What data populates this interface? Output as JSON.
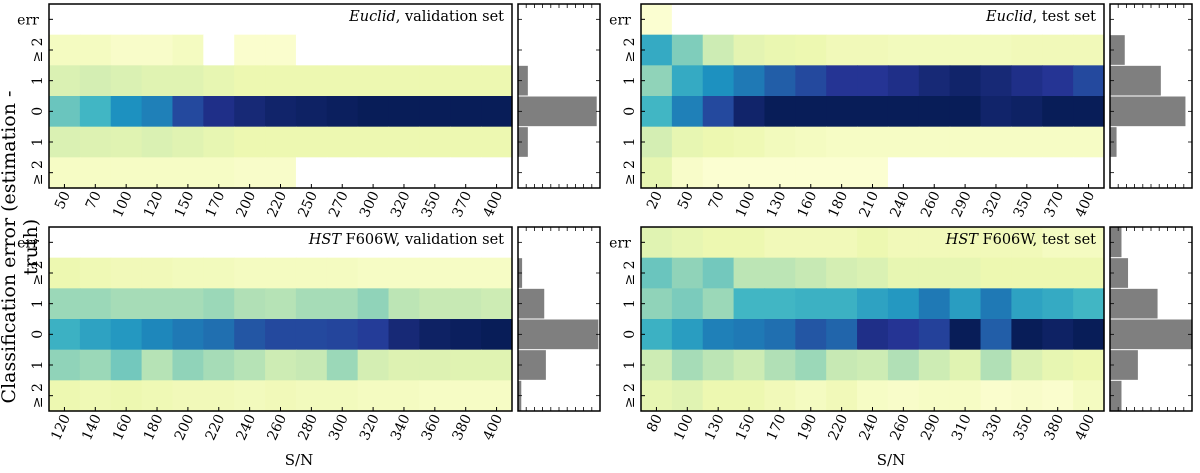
{
  "figure": {
    "ylabel": "Classification error (estimation - truth)",
    "xlabel_left": "S/N",
    "xlabel_right": "S/N"
  },
  "colors": {
    "frame": "#000000",
    "hist_bar": "#7f7f7f"
  },
  "chart_data": [
    {
      "type": "heatmap",
      "title": "Euclid, validation set",
      "title_parts": [
        "Euclid",
        ", validation set"
      ],
      "rows": [
        "err",
        "≥ 2",
        "1",
        "0",
        "1",
        "≥ 2"
      ],
      "columns": [
        "50",
        "70",
        "100",
        "120",
        "150",
        "170",
        "200",
        "220",
        "250",
        "270",
        "300",
        "320",
        "350",
        "370",
        "400"
      ],
      "xlabel": "S/N",
      "colorscale": "YlGnBu",
      "values": [
        [
          0,
          0,
          0,
          0,
          0,
          0,
          0,
          0,
          0,
          0,
          0,
          0,
          0,
          0,
          0
        ],
        [
          0.06,
          0.06,
          0.04,
          0.04,
          0.06,
          0,
          0.03,
          0.03,
          0,
          0,
          0,
          0,
          0,
          0,
          0
        ],
        [
          0.16,
          0.18,
          0.16,
          0.14,
          0.14,
          0.12,
          0.1,
          0.1,
          0.1,
          0.1,
          0.1,
          0.1,
          0.1,
          0.1,
          0.1
        ],
        [
          0.4,
          0.5,
          0.65,
          0.7,
          0.85,
          0.92,
          0.95,
          0.97,
          0.98,
          0.99,
          1.0,
          1.0,
          1.0,
          1.0,
          1.0
        ],
        [
          0.16,
          0.15,
          0.14,
          0.16,
          0.14,
          0.12,
          0.1,
          0.1,
          0.1,
          0.1,
          0.1,
          0.1,
          0.1,
          0.1,
          0.1
        ],
        [
          0.05,
          0.05,
          0.05,
          0.05,
          0.05,
          0.05,
          0.04,
          0.04,
          0,
          0,
          0,
          0,
          0,
          0,
          0
        ]
      ],
      "histogram": [
        0,
        0,
        0.12,
        0.96,
        0.12,
        0
      ]
    },
    {
      "type": "heatmap",
      "title": "Euclid, test set",
      "title_parts": [
        "Euclid",
        ", test set"
      ],
      "rows": [
        "err",
        "≥ 2",
        "1",
        "0",
        "1",
        "≥ 2"
      ],
      "columns": [
        "20",
        "50",
        "70",
        "100",
        "130",
        "160",
        "180",
        "210",
        "240",
        "260",
        "290",
        "320",
        "350",
        "370",
        "400"
      ],
      "xlabel": "S/N",
      "colorscale": "YlGnBu",
      "values": [
        [
          0.02,
          0,
          0,
          0,
          0,
          0,
          0,
          0,
          0,
          0,
          0,
          0,
          0,
          0,
          0
        ],
        [
          0.55,
          0.35,
          0.2,
          0.13,
          0.11,
          0.1,
          0.08,
          0.08,
          0.07,
          0.07,
          0.07,
          0.07,
          0.08,
          0.08,
          0.08
        ],
        [
          0.32,
          0.55,
          0.65,
          0.72,
          0.8,
          0.85,
          0.9,
          0.9,
          0.92,
          0.95,
          0.97,
          0.95,
          0.92,
          0.9,
          0.85
        ],
        [
          0.5,
          0.7,
          0.85,
          0.97,
          1.0,
          1.0,
          1.0,
          1.0,
          1.0,
          1.0,
          1.0,
          0.97,
          0.98,
          1.0,
          1.0
        ],
        [
          0.18,
          0.12,
          0.1,
          0.09,
          0.07,
          0.06,
          0.05,
          0.05,
          0.05,
          0.05,
          0.05,
          0.05,
          0.05,
          0.05,
          0.05
        ],
        [
          0.12,
          0.04,
          0.02,
          0.02,
          0.02,
          0.02,
          0.02,
          0.02,
          0,
          0,
          0,
          0,
          0,
          0,
          0
        ]
      ],
      "histogram": [
        0,
        0.18,
        0.62,
        0.92,
        0.08,
        0
      ]
    },
    {
      "type": "heatmap",
      "title": "HST F606W, validation set",
      "title_parts": [
        "HST",
        " F606W, validation set"
      ],
      "rows": [
        "err",
        "≥ 2",
        "1",
        "0",
        "1",
        "≥ 2"
      ],
      "columns": [
        "120",
        "140",
        "160",
        "180",
        "200",
        "220",
        "240",
        "260",
        "280",
        "300",
        "320",
        "340",
        "360",
        "380",
        "400"
      ],
      "xlabel": "S/N",
      "colorscale": "YlGnBu",
      "values": [
        [
          0,
          0,
          0,
          0,
          0,
          0,
          0,
          0,
          0,
          0,
          0,
          0,
          0,
          0,
          0
        ],
        [
          0.1,
          0.09,
          0.08,
          0.08,
          0.07,
          0.07,
          0.06,
          0.06,
          0.06,
          0.06,
          0.05,
          0.05,
          0.05,
          0.05,
          0.05
        ],
        [
          0.3,
          0.3,
          0.28,
          0.28,
          0.28,
          0.3,
          0.26,
          0.25,
          0.28,
          0.28,
          0.32,
          0.24,
          0.22,
          0.22,
          0.2
        ],
        [
          0.52,
          0.58,
          0.62,
          0.68,
          0.72,
          0.75,
          0.82,
          0.85,
          0.85,
          0.86,
          0.88,
          0.95,
          0.98,
          0.99,
          1.0
        ],
        [
          0.32,
          0.3,
          0.38,
          0.25,
          0.32,
          0.28,
          0.25,
          0.2,
          0.22,
          0.3,
          0.18,
          0.15,
          0.15,
          0.14,
          0.14
        ],
        [
          0.1,
          0.09,
          0.1,
          0.09,
          0.08,
          0.08,
          0.07,
          0.08,
          0.07,
          0.07,
          0.06,
          0.06,
          0.05,
          0.05,
          0.05
        ]
      ],
      "histogram": [
        0,
        0.05,
        0.32,
        0.98,
        0.34,
        0.04
      ]
    },
    {
      "type": "heatmap",
      "title": "HST F606W, test set",
      "title_parts": [
        "HST",
        " F606W, test set"
      ],
      "rows": [
        "err",
        "≥ 2",
        "1",
        "0",
        "1",
        "≥ 2"
      ],
      "columns": [
        "80",
        "100",
        "130",
        "150",
        "170",
        "190",
        "220",
        "240",
        "260",
        "290",
        "310",
        "330",
        "350",
        "380",
        "400"
      ],
      "xlabel": "S/N",
      "colorscale": "YlGnBu",
      "values": [
        [
          0.14,
          0.12,
          0.1,
          0.1,
          0.08,
          0.08,
          0.08,
          0.1,
          0.08,
          0.08,
          0.08,
          0.08,
          0.08,
          0.06,
          0.06
        ],
        [
          0.4,
          0.32,
          0.38,
          0.24,
          0.24,
          0.22,
          0.18,
          0.16,
          0.12,
          0.12,
          0.12,
          0.1,
          0.1,
          0.1,
          0.1
        ],
        [
          0.32,
          0.36,
          0.3,
          0.5,
          0.5,
          0.52,
          0.52,
          0.58,
          0.62,
          0.72,
          0.6,
          0.72,
          0.58,
          0.55,
          0.5
        ],
        [
          0.52,
          0.6,
          0.7,
          0.72,
          0.75,
          0.82,
          0.78,
          0.92,
          0.9,
          0.87,
          1.0,
          0.8,
          1.0,
          0.98,
          1.0
        ],
        [
          0.2,
          0.28,
          0.24,
          0.2,
          0.26,
          0.3,
          0.22,
          0.2,
          0.26,
          0.2,
          0.14,
          0.26,
          0.16,
          0.12,
          0.1
        ],
        [
          0.12,
          0.14,
          0.1,
          0.1,
          0.08,
          0.06,
          0.08,
          0.05,
          0.04,
          0.05,
          0.05,
          0.03,
          0.04,
          0.03,
          0.06
        ]
      ],
      "histogram": [
        0.14,
        0.22,
        0.58,
        1.0,
        0.34,
        0.14
      ]
    }
  ]
}
